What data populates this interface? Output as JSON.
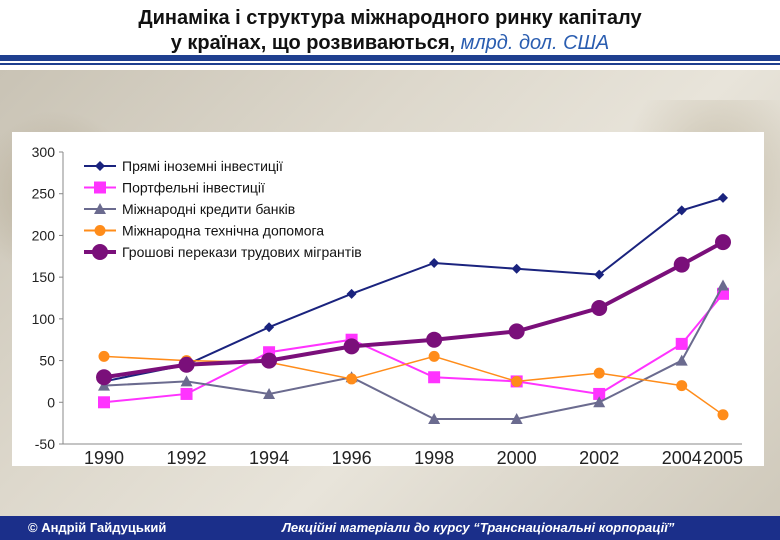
{
  "slide": {
    "title_line1": "Динаміка і структура міжнародного ринку капіталу",
    "title_line2_main": "у країнах, що розвиваються,",
    "title_line2_unit": "млрд. дол. США",
    "footer_left": "© Андрій Гайдуцький",
    "footer_right": "Лекційні матеріали до курсу “Транснаціональні корпорації”"
  },
  "chart_data": {
    "type": "line",
    "x": [
      1990,
      1992,
      1994,
      1996,
      1998,
      2000,
      2002,
      2004,
      2005
    ],
    "x_tick_labels": [
      "1990",
      "1992",
      "1994",
      "1996",
      "1998",
      "2000",
      "2002",
      "2004",
      "2005"
    ],
    "ylim": [
      -50,
      300
    ],
    "y_ticks": [
      -50,
      0,
      50,
      100,
      150,
      200,
      250,
      300
    ],
    "legend_position": "top-left",
    "grid": false,
    "series": [
      {
        "name": "Прямі іноземні інвестиції",
        "color": "#1a237e",
        "marker": "diamond",
        "values": [
          25,
          45,
          90,
          130,
          167,
          160,
          153,
          230,
          245
        ]
      },
      {
        "name": "Портфельні інвестиції",
        "color": "#ff33ff",
        "marker": "square",
        "values": [
          0,
          10,
          60,
          75,
          30,
          25,
          10,
          70,
          130
        ]
      },
      {
        "name": "Міжнародні кредити банків",
        "color": "#6b6b8f",
        "marker": "triangle",
        "values": [
          20,
          25,
          10,
          30,
          -20,
          -20,
          0,
          50,
          140
        ]
      },
      {
        "name": "Міжнародна технічна допомога",
        "color": "#ff8c1a",
        "marker": "circle-small",
        "values": [
          55,
          50,
          48,
          28,
          55,
          25,
          35,
          20,
          -15
        ]
      },
      {
        "name": "Грошові перекази трудових мігрантів",
        "color": "#7a0f7a",
        "marker": "circle-large",
        "values": [
          30,
          45,
          50,
          67,
          75,
          85,
          113,
          165,
          192
        ]
      }
    ]
  }
}
